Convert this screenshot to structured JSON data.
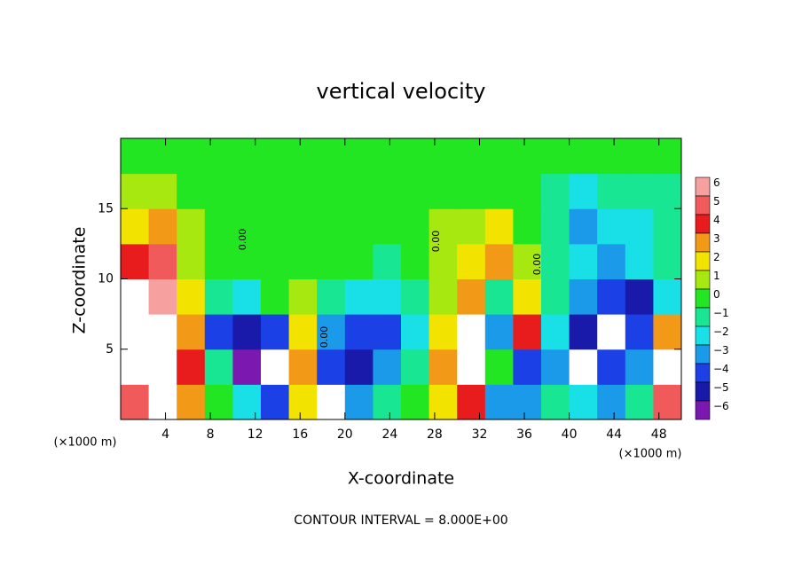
{
  "chart_data": {
    "type": "heatmap",
    "title": "vertical velocity",
    "x_label": "X-coordinate",
    "y_label": "Z-coordinate",
    "x_unit_labels": [
      "(×1000 m)",
      "(×1000 m)"
    ],
    "footer": "CONTOUR INTERVAL = 8.000E+00",
    "contour_label": "0.00",
    "x": [
      1.25,
      3.75,
      6.25,
      8.75,
      11.25,
      13.75,
      16.25,
      18.75,
      21.25,
      23.75,
      26.25,
      28.75,
      31.25,
      33.75,
      36.25,
      38.75,
      41.25,
      43.75,
      46.25,
      48.75
    ],
    "y": [
      1.25,
      3.75,
      6.25,
      8.75,
      11.25,
      13.75,
      16.25,
      18.75
    ],
    "values": [
      [
        5,
        7,
        3,
        0,
        -2,
        -4,
        2,
        -7,
        -3,
        -1,
        0,
        2,
        4,
        -3,
        -3,
        -1,
        -2,
        -3,
        -1,
        5
      ],
      [
        7,
        7,
        4,
        -1,
        -6,
        -7,
        3,
        -4,
        -5,
        -3,
        -1,
        3,
        7,
        0,
        -4,
        -3,
        -7,
        -4,
        -3,
        7
      ],
      [
        7,
        7,
        3,
        -4,
        -5,
        -4,
        2,
        -3,
        -4,
        -4,
        -2,
        2,
        7,
        -3,
        4,
        -2,
        -5,
        -7,
        -4,
        3
      ],
      [
        7,
        6,
        2,
        -1,
        -2,
        0,
        1,
        -1,
        -2,
        -2,
        -1,
        1,
        3,
        -1,
        2,
        -1,
        -3,
        -4,
        -5,
        -2
      ],
      [
        4,
        5,
        1,
        0,
        0,
        0,
        0,
        0,
        0,
        -1,
        0,
        1,
        2,
        3,
        1,
        -1,
        -2,
        -3,
        -2,
        -1
      ],
      [
        2,
        3,
        1,
        0,
        0,
        0,
        0,
        0,
        0,
        0,
        0,
        1,
        1,
        2,
        0,
        -1,
        -3,
        -2,
        -2,
        -1
      ],
      [
        1,
        1,
        0,
        0,
        0,
        0,
        0,
        0,
        0,
        0,
        0,
        0,
        0,
        0,
        0,
        -1,
        -2,
        -1,
        -1,
        -1
      ],
      [
        0,
        0,
        0,
        0,
        0,
        0,
        0,
        0,
        0,
        0,
        0,
        0,
        0,
        0,
        0,
        0,
        0,
        0,
        0,
        0
      ]
    ],
    "xlim": [
      0,
      50
    ],
    "ylim": [
      0,
      20
    ],
    "xticks": [
      4,
      8,
      12,
      16,
      20,
      24,
      28,
      32,
      36,
      40,
      44,
      48
    ],
    "yticks": [
      5,
      10,
      15
    ],
    "colorbar_ticks": [
      6,
      5,
      4,
      3,
      2,
      1,
      0,
      {
        "value": -1,
        "label": "−1"
      },
      {
        "value": -2,
        "label": "−2"
      },
      {
        "value": -3,
        "label": "−3"
      },
      {
        "value": -4,
        "label": "−4"
      },
      {
        "value": -5,
        "label": "−5"
      },
      {
        "value": -6,
        "label": "−6"
      }
    ],
    "colors": [
      "#f7a0a0",
      "#f05a5a",
      "#e81c1c",
      "#f29a18",
      "#f2e400",
      "#a6e810",
      "#22e622",
      "#18e692",
      "#18e0e6",
      "#1a9ae8",
      "#1a40e6",
      "#1a1aaa",
      "#7a18b0"
    ],
    "over_color": "#ffffff"
  }
}
